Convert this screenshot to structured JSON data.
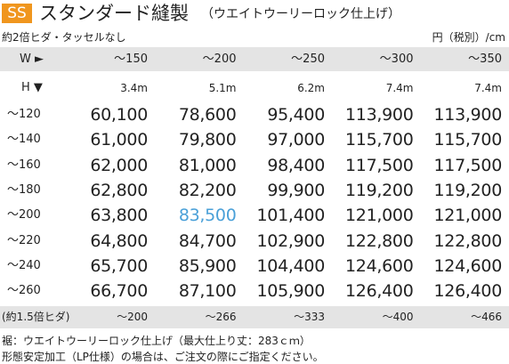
{
  "header": {
    "badge": "SS",
    "title": "スタンダード縫製",
    "subtitle": "（ウエイトウーリーロック仕上げ）",
    "note_left": "約2倍ヒダ・タッセルなし",
    "unit": "円（税別）/cm"
  },
  "table": {
    "width_label": "W ►",
    "columns": [
      "～150",
      "～200",
      "～250",
      "～300",
      "～350"
    ],
    "fabric_label": "H ▼",
    "fabric": [
      "3.4m",
      "5.1m",
      "6.2m",
      "7.4m",
      "7.4m"
    ],
    "rows": [
      {
        "label": "～120",
        "prices": [
          "60,100",
          "78,600",
          "95,400",
          "113,900",
          "113,900"
        ]
      },
      {
        "label": "～140",
        "prices": [
          "61,000",
          "79,800",
          "97,000",
          "115,700",
          "115,700"
        ]
      },
      {
        "label": "～160",
        "prices": [
          "62,000",
          "81,000",
          "98,400",
          "117,500",
          "117,500"
        ]
      },
      {
        "label": "～180",
        "prices": [
          "62,800",
          "82,200",
          "99,900",
          "119,200",
          "119,200"
        ]
      },
      {
        "label": "～200",
        "prices": [
          "63,800",
          "83,500",
          "101,400",
          "121,000",
          "121,000"
        ]
      },
      {
        "label": "～220",
        "prices": [
          "64,800",
          "84,700",
          "102,900",
          "122,800",
          "122,800"
        ]
      },
      {
        "label": "～240",
        "prices": [
          "65,700",
          "85,900",
          "104,400",
          "124,600",
          "124,600"
        ]
      },
      {
        "label": "～260",
        "prices": [
          "66,700",
          "87,100",
          "105,900",
          "126,400",
          "126,400"
        ]
      }
    ],
    "footer_label": "(約1.5倍ヒダ)",
    "footer": [
      "～200",
      "～266",
      "～333",
      "～400",
      "～466"
    ]
  },
  "notes": [
    "裾：ウエイトウーリーロック仕上げ（最大仕上り丈：283ｃｍ）",
    "形態安定加工（LP仕様）の場合は、ご注文の際にご指定ください。"
  ]
}
